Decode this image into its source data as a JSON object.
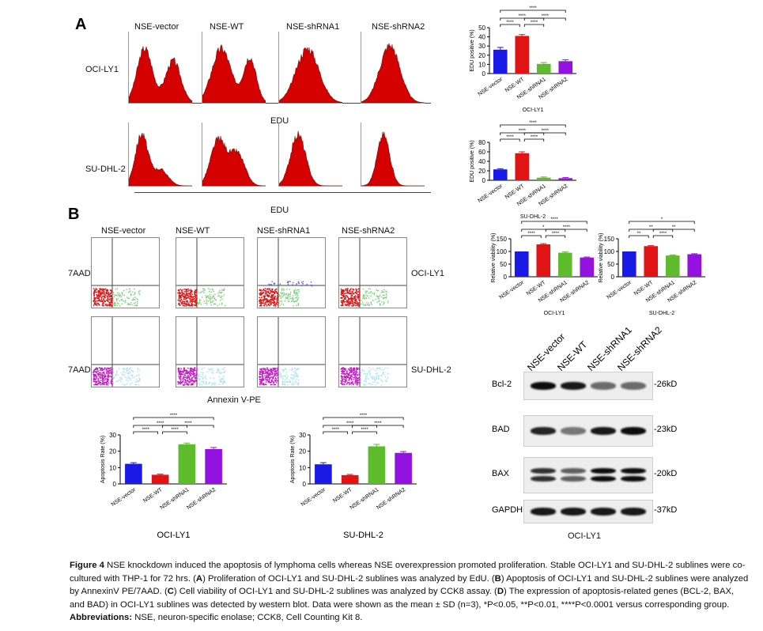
{
  "panelA": {
    "label": "A",
    "groups": [
      "NSE-vector",
      "NSE-WT",
      "NSE-shRNA1",
      "NSE-shRNA2"
    ],
    "rows": [
      "OCI-LY1",
      "SU-DHL-2"
    ],
    "xaxis": "EDU"
  },
  "panelB": {
    "label": "B",
    "groups": [
      "NSE-vector",
      "NSE-WT",
      "NSE-shRNA1",
      "NSE-shRNA2"
    ],
    "ylabel": "7AAD",
    "xaxis": "Annexin V-PE",
    "rows": [
      "OCI-LY1",
      "SU-DHL-2"
    ]
  },
  "colors": {
    "vector": "#1a1ae6",
    "wt": "#e01414",
    "shRNA1": "#5dbb2c",
    "shRNA2": "#9412e0"
  },
  "chart_data": [
    {
      "type": "bar",
      "id": "edu-oci",
      "categories": [
        "NSE-vector",
        "NSE-WT",
        "NSE-shRNA1",
        "NSE-shRNA2"
      ],
      "values": [
        26,
        41,
        10.5,
        13.5
      ],
      "errors": [
        2.5,
        1.5,
        1.5,
        1.5
      ],
      "ylabel": "EDU positive (%)",
      "xlabel": "OCI-LY1",
      "ylim": [
        0,
        50
      ],
      "ticks": [
        0,
        10,
        20,
        30,
        40,
        50
      ],
      "significance": [
        [
          0,
          1,
          "****"
        ],
        [
          1,
          2,
          "****"
        ],
        [
          0,
          2,
          "****"
        ],
        [
          1,
          3,
          "****"
        ],
        [
          0,
          3,
          "****"
        ]
      ]
    },
    {
      "type": "bar",
      "id": "edu-su",
      "categories": [
        "NSE-vector",
        "NSE-WT",
        "NSE-shRNA1",
        "NSE-shRNA2"
      ],
      "values": [
        23,
        57,
        5.5,
        4.5
      ],
      "errors": [
        1.5,
        3,
        1.5,
        1.5
      ],
      "ylabel": "EDU positive (%)",
      "xlabel": "SU-DHL-2",
      "ylim": [
        0,
        80
      ],
      "ticks": [
        0,
        20,
        40,
        60,
        80
      ],
      "significance": [
        [
          0,
          1,
          "****"
        ],
        [
          1,
          2,
          "****"
        ],
        [
          0,
          2,
          "****"
        ],
        [
          1,
          3,
          "****"
        ],
        [
          0,
          3,
          "****"
        ]
      ]
    },
    {
      "type": "bar",
      "id": "via-oci",
      "categories": [
        "NSE-vector",
        "NSE-WT",
        "NSE-shRNA1",
        "NSE-shRNA2"
      ],
      "values": [
        100,
        128,
        95,
        76
      ],
      "errors": [
        0,
        3,
        3,
        2
      ],
      "ylabel": "Relative viability (%)",
      "xlabel": "OCI-LY1",
      "ylim": [
        0,
        150
      ],
      "ticks": [
        0,
        50,
        100,
        150
      ],
      "significance": [
        [
          0,
          1,
          "****"
        ],
        [
          1,
          2,
          "****"
        ],
        [
          0,
          2,
          "*"
        ],
        [
          1,
          3,
          "****"
        ],
        [
          0,
          3,
          "****"
        ]
      ]
    },
    {
      "type": "bar",
      "id": "via-su",
      "categories": [
        "NSE-vector",
        "NSE-WT",
        "NSE-shRNA1",
        "NSE-shRNA2"
      ],
      "values": [
        100,
        121,
        84,
        89
      ],
      "errors": [
        0,
        2,
        2,
        2
      ],
      "ylabel": "Relative viability (%)",
      "xlabel": "SU-DHL-2",
      "ylim": [
        0,
        150
      ],
      "ticks": [
        0,
        50,
        100,
        150
      ],
      "significance": [
        [
          0,
          1,
          "**"
        ],
        [
          1,
          2,
          "****"
        ],
        [
          0,
          2,
          "**"
        ],
        [
          1,
          3,
          "**"
        ],
        [
          0,
          3,
          "*"
        ]
      ]
    },
    {
      "type": "bar",
      "id": "apo-oci",
      "categories": [
        "NSE-vector",
        "NSE-WT",
        "NSE-shRNA1",
        "NSE-shRNA2"
      ],
      "values": [
        12.3,
        5.6,
        24.2,
        21.3
      ],
      "errors": [
        0.7,
        0.4,
        0.8,
        1.0
      ],
      "ylabel": "Apoptosis Rate (%)",
      "xlabel": "OCI-LY1",
      "ylim": [
        0,
        30
      ],
      "ticks": [
        0,
        10,
        20,
        30
      ],
      "significance": [
        [
          0,
          1,
          "****"
        ],
        [
          1,
          2,
          "****"
        ],
        [
          0,
          2,
          "****"
        ],
        [
          1,
          3,
          "****"
        ],
        [
          0,
          3,
          "****"
        ]
      ]
    },
    {
      "type": "bar",
      "id": "apo-su",
      "categories": [
        "NSE-vector",
        "NSE-WT",
        "NSE-shRNA1",
        "NSE-shRNA2"
      ],
      "values": [
        12,
        5.4,
        23,
        19
      ],
      "errors": [
        1.0,
        0.4,
        1.2,
        0.8
      ],
      "ylabel": "Apoptosis Rate (%)",
      "xlabel": "SU-DHL-2",
      "ylim": [
        0,
        30
      ],
      "ticks": [
        0,
        10,
        20,
        30
      ],
      "significance": [
        [
          0,
          1,
          "****"
        ],
        [
          1,
          2,
          "****"
        ],
        [
          0,
          2,
          "****"
        ],
        [
          1,
          3,
          "****"
        ],
        [
          0,
          3,
          "****"
        ]
      ]
    }
  ],
  "western": {
    "lanes": [
      "NSE-vector",
      "NSE-WT",
      "NSE-shRNA1",
      "NSE-shRNA2"
    ],
    "bands": [
      {
        "name": "Bcl-2",
        "kd": "-26kD",
        "intensity": [
          0.95,
          0.9,
          0.55,
          0.55
        ]
      },
      {
        "name": "BAD",
        "kd": "-23kD",
        "intensity": [
          0.85,
          0.5,
          0.9,
          0.95
        ]
      },
      {
        "name": "BAX",
        "kd": "-20kD",
        "intensity": [
          0.8,
          0.6,
          0.95,
          0.95
        ]
      },
      {
        "name": "GAPDH",
        "kd": "-37kD",
        "intensity": [
          0.9,
          0.9,
          0.9,
          0.9
        ]
      }
    ],
    "cell_line": "OCI-LY1"
  },
  "caption": {
    "fig": "Figure 4",
    "text1": " NSE knockdown induced the apoptosis of lymphoma cells whereas NSE overexpression promoted proliferation. Stable OCI-LY1 and SU-DHL-2 sublines were co-cultured with THP-1 for 72 hrs. (",
    "A": "A",
    "text2": ") Proliferation of OCI-LY1 and SU-DHL-2 sublines was analyzed by EdU. (",
    "B": "B",
    "text3": ") Apoptosis of OCI-LY1 and SU-DHL-2 sublines were analyzed by AnnexinV PE/7AAD. (",
    "C": "C",
    "text4": ") Cell viability of OCI-LY1 and SU-DHL-2 sublines was analyzed by CCK8 assay. (",
    "D": "D",
    "text5": ") The expression of apoptosis-related genes (BCL-2, BAX, and BAD) in OCI-LY1 sublines was detected by western blot. Data were shown as the mean ± SD (n=3), *P<0.05, **P<0.01, ****P<0.0001 versus corresponding group.",
    "abbr_label": "Abbreviations:",
    "abbr_text": " NSE, neuron-specific enolase; CCK8, Cell Counting Kit 8."
  }
}
